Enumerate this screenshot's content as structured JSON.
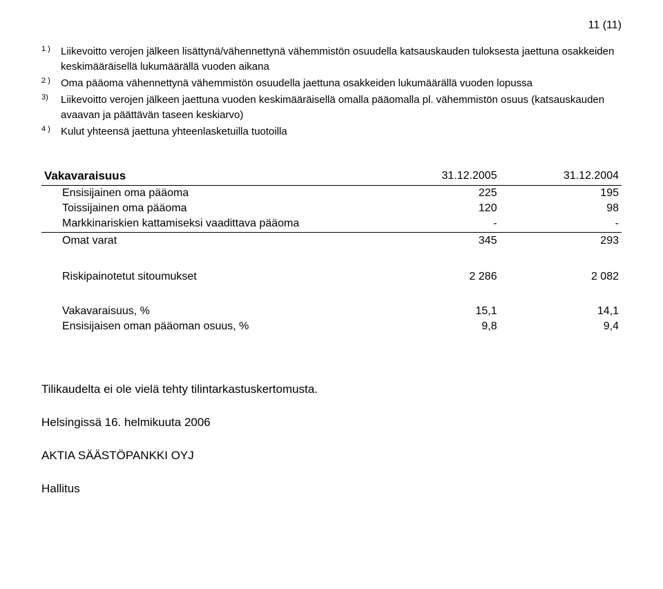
{
  "page_number": "11 (11)",
  "footnotes": [
    {
      "marker": "1 )",
      "text": "Liikevoitto verojen jälkeen lisättynä/vähennettynä vähemmistön osuudella katsauskauden tuloksesta jaettuna osakkeiden keskimääräisellä lukumäärällä vuoden aikana"
    },
    {
      "marker": "2 )",
      "text": "Oma pääoma vähennettynä vähemmistön osuudella jaettuna osakkeiden lukumäärällä vuoden lopussa"
    },
    {
      "marker": "3)",
      "text": "Liikevoitto verojen jälkeen jaettuna vuoden keskimääräisellä omalla pääomalla pl. vähemmistön osuus (katsauskauden avaavan ja päättävän taseen keskiarvo)"
    },
    {
      "marker": "4 )",
      "text": "Kulut yhteensä jaettuna yhteenlasketuilla tuotoilla"
    }
  ],
  "capital": {
    "title": "Vakavaraisuus",
    "col1": "31.12.2005",
    "col2": "31.12.2004",
    "rows": [
      {
        "label": "Ensisijainen oma pääoma",
        "v1": "225",
        "v2": "195"
      },
      {
        "label": "Toissijainen oma pääoma",
        "v1": "120",
        "v2": "98"
      },
      {
        "label": "Markkinariskien kattamiseksi vaadittava pääoma",
        "v1": "-",
        "v2": "-"
      }
    ],
    "sum": {
      "label": "Omat varat",
      "v1": "345",
      "v2": "293"
    }
  },
  "riskpos": {
    "label": "Riskipainotetut sitoumukset",
    "v1": "2 286",
    "v2": "2 082"
  },
  "ratios": [
    {
      "label": "Vakavaraisuus, %",
      "v1": "15,1",
      "v2": "14,1"
    },
    {
      "label": "Ensisijaisen oman pääoman osuus, %",
      "v1": "9,8",
      "v2": "9,4"
    }
  ],
  "closing": {
    "audit_note": "Tilikaudelta ei ole vielä tehty tilintarkastuskertomusta.",
    "place_date": "Helsingissä 16. helmikuuta 2006",
    "company": "AKTIA SÄÄSTÖPANKKI OYJ",
    "signer": "Hallitus"
  }
}
